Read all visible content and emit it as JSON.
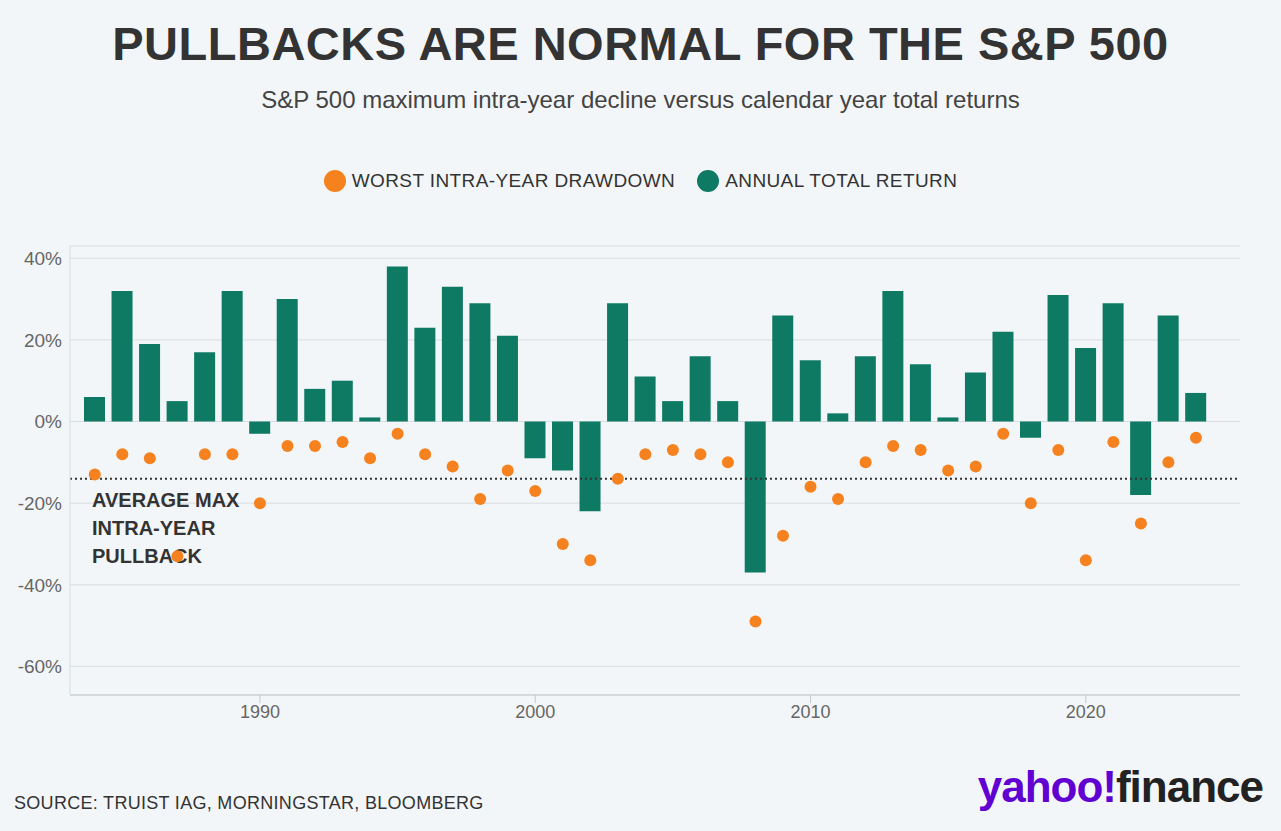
{
  "chart_data": {
    "type": "bar",
    "title": "PULLBACKS ARE NORMAL FOR THE S&P 500",
    "subtitle": "S&P 500 maximum intra-year decline versus calendar year total returns",
    "x": [
      1984,
      1985,
      1986,
      1987,
      1988,
      1989,
      1990,
      1991,
      1992,
      1993,
      1994,
      1995,
      1996,
      1997,
      1998,
      1999,
      2000,
      2001,
      2002,
      2003,
      2004,
      2005,
      2006,
      2007,
      2008,
      2009,
      2010,
      2011,
      2012,
      2013,
      2014,
      2015,
      2016,
      2017,
      2018,
      2019,
      2020,
      2021,
      2022,
      2023,
      2024
    ],
    "series": [
      {
        "name": "WORST INTRA-YEAR DRAWDOWN",
        "type": "scatter",
        "marker": "circle",
        "color": "#f5821f",
        "values": [
          -13,
          -8,
          -9,
          -33,
          -8,
          -8,
          -20,
          -6,
          -6,
          -5,
          -9,
          -3,
          -8,
          -11,
          -19,
          -12,
          -17,
          -30,
          -34,
          -14,
          -8,
          -7,
          -8,
          -10,
          -49,
          -28,
          -16,
          -19,
          -10,
          -6,
          -7,
          -12,
          -11,
          -3,
          -20,
          -7,
          -34,
          -5,
          -25,
          -10,
          -4
        ]
      },
      {
        "name": "ANNUAL TOTAL RETURN",
        "type": "bar",
        "color": "#0e7a64",
        "values": [
          6,
          32,
          19,
          5,
          17,
          32,
          -3,
          30,
          8,
          10,
          1,
          38,
          23,
          33,
          29,
          21,
          -9,
          -12,
          -22,
          29,
          11,
          5,
          16,
          5,
          -37,
          26,
          15,
          2,
          16,
          32,
          14,
          1,
          12,
          22,
          -4,
          31,
          18,
          29,
          -18,
          26,
          7
        ]
      }
    ],
    "xlim": [
      1983.1,
      2025.6
    ],
    "xticks": [
      1990,
      2000,
      2010,
      2020
    ],
    "ylim": [
      -67,
      43
    ],
    "yticks": [
      {
        "value": -60,
        "label": "-60%"
      },
      {
        "value": -40,
        "label": "-40%"
      },
      {
        "value": -20,
        "label": "-20%"
      },
      {
        "value": 0,
        "label": "0%"
      },
      {
        "value": 20,
        "label": "20%"
      },
      {
        "value": 40,
        "label": "40%"
      }
    ],
    "grid": true,
    "legend": "top",
    "annotations": [
      {
        "type": "hline",
        "value": -14,
        "line_style": "dotted",
        "text": "AVERAGE MAX\nINTRA-YEAR\nPULLBACK"
      }
    ],
    "source": "SOURCE: TRUIST IAG, MORNINGSTAR, BLOOMBERG",
    "logo": [
      "yahoo!",
      "finance"
    ]
  }
}
